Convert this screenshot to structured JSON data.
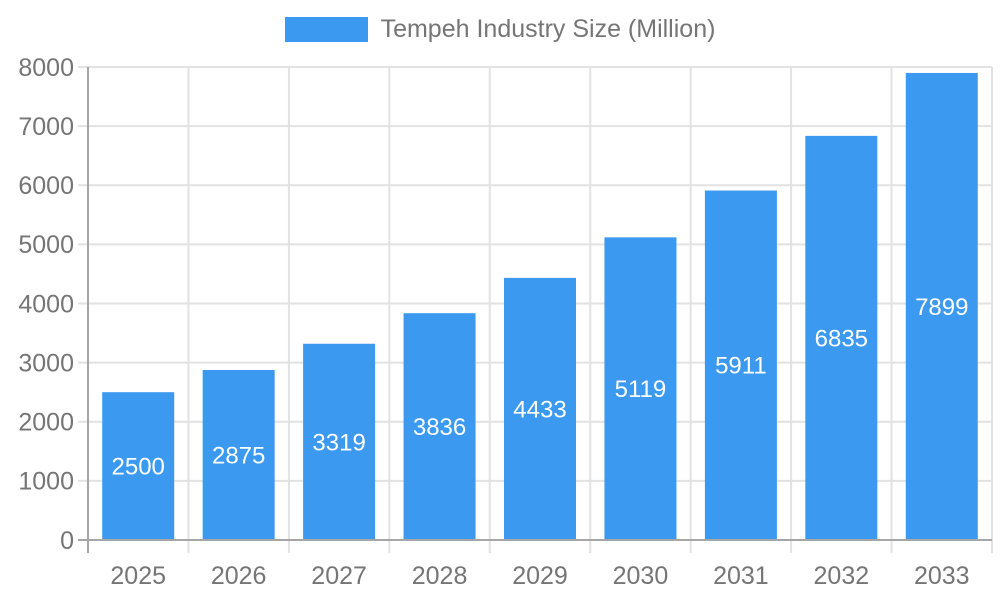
{
  "legend": {
    "label": "Tempeh Industry Size (Million)"
  },
  "colors": {
    "bar": "#3B99F0",
    "grid": "#E2E2E2",
    "axis": "#A6A6A6",
    "axis_text": "#757575",
    "data_label": "#FFFFFF",
    "background": "#FFFFFF"
  },
  "chart_data": {
    "type": "bar",
    "title": "Tempeh Industry Size (Million)",
    "categories": [
      "2025",
      "2026",
      "2027",
      "2028",
      "2029",
      "2030",
      "2031",
      "2032",
      "2033"
    ],
    "values": [
      2500,
      2875,
      3319,
      3836,
      4433,
      5119,
      5911,
      6835,
      7899
    ],
    "xlabel": "",
    "ylabel": "",
    "ylim": [
      0,
      8000
    ],
    "ytick_step": 1000,
    "grid": true,
    "legend_position": "top-center",
    "data_label_position": "inside-center"
  }
}
